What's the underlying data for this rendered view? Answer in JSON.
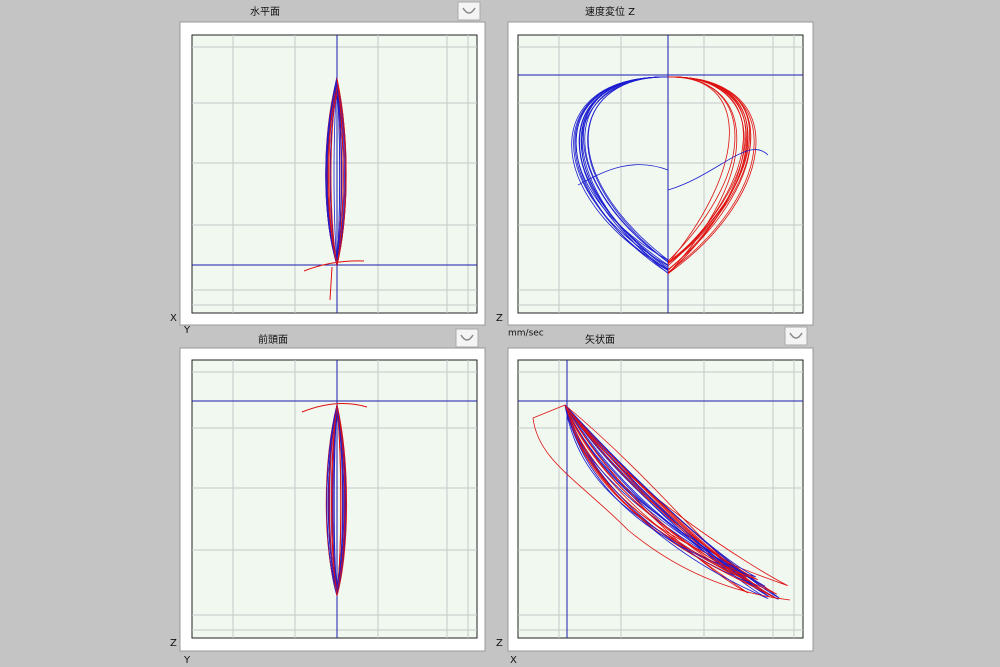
{
  "panels": [
    {
      "title": "水平面",
      "axis_left": "X",
      "axis_bottom": "Y"
    },
    {
      "title": "速度変位 Z",
      "axis_left": "Z",
      "axis_bottom": "mm/sec"
    },
    {
      "title": "前頭面",
      "axis_left": "Z",
      "axis_bottom": "Y"
    },
    {
      "title": "矢状面",
      "axis_left": "Z",
      "axis_bottom": "X"
    }
  ]
}
